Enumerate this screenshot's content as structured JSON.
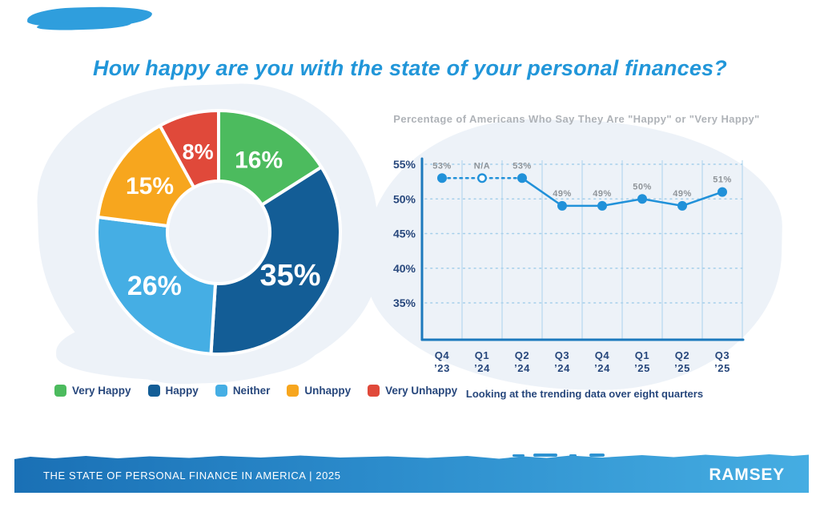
{
  "page": {
    "title": "How happy are you with the state of your personal finances?"
  },
  "colors": {
    "title_blue": "#2196D9",
    "navy_text": "#27477C",
    "gray_title": "#AFB3B8",
    "gray_data_label": "#8F9499",
    "axis_blue": "#1C79BD",
    "gridline_blue": "#ABD3EE",
    "dotted_grid_blue": "#A5CFEA",
    "line_blue": "#2191D9",
    "wash": "#EDF2F8",
    "smear_blue": "#2F9EDD",
    "footer_gradient_left": "#1A70B5",
    "footer_gradient_right": "#45ADE2"
  },
  "chart_data": [
    {
      "type": "pie",
      "donut": true,
      "labels": [
        "Very Happy",
        "Happy",
        "Neither",
        "Unhappy",
        "Very Unhappy"
      ],
      "values": [
        16,
        35,
        26,
        15,
        8
      ],
      "value_labels": [
        "16%",
        "35%",
        "26%",
        "15%",
        "8%"
      ],
      "colors": [
        "#4CBB5E",
        "#135D96",
        "#45AEE4",
        "#F7A61E",
        "#E0493A"
      ],
      "start_angle_deg": 0,
      "direction": "clockwise",
      "legend_position": "bottom"
    },
    {
      "type": "line",
      "title": "Percentage of Americans Who Say They Are \"Happy\" or \"Very Happy\"",
      "categories": [
        "Q4 ’23",
        "Q1 ’24",
        "Q2 ’24",
        "Q3 ’24",
        "Q4 ’24",
        "Q1 ’25",
        "Q2 ’25",
        "Q3 ’25"
      ],
      "values": [
        53,
        null,
        53,
        49,
        49,
        50,
        49,
        51
      ],
      "point_labels": [
        "53%",
        "N/A",
        "53%",
        "49%",
        "49%",
        "50%",
        "49%",
        "51%"
      ],
      "na_index": 1,
      "na_plot_value": 53,
      "y_ticks": [
        "55%",
        "50%",
        "45%",
        "40%",
        "35%"
      ],
      "y_tick_values": [
        55,
        50,
        45,
        40,
        35
      ],
      "ylim": [
        30,
        56
      ],
      "grid": "on",
      "caption": "Looking at the trending data over eight quarters"
    }
  ],
  "footer": {
    "left_text": "THE STATE OF PERSONAL FINANCE IN AMERICA | 2025",
    "brand": "RAMSEY"
  }
}
